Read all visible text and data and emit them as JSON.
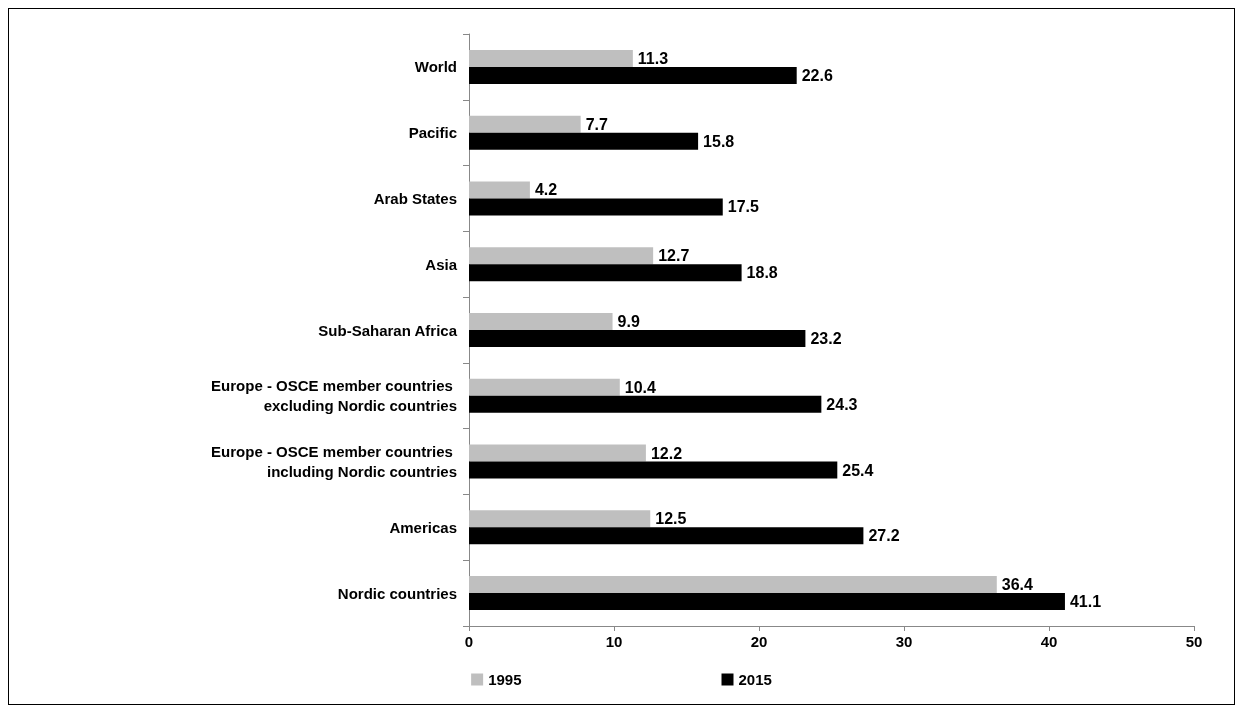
{
  "chart_data": {
    "type": "bar",
    "orientation": "horizontal",
    "categories": [
      "World",
      "Pacific",
      "Arab States",
      "Asia",
      "Sub-Saharan Africa",
      "Europe - OSCE member countries excluding Nordic countries",
      "Europe - OSCE member countries including Nordic countries",
      "Americas",
      "Nordic countries"
    ],
    "series": [
      {
        "name": "1995",
        "color": "#bfbfbf",
        "values": [
          11.3,
          7.7,
          4.2,
          12.7,
          9.9,
          10.4,
          12.2,
          12.5,
          36.4
        ]
      },
      {
        "name": "2015",
        "color": "#000000",
        "values": [
          22.6,
          15.8,
          17.5,
          18.8,
          23.2,
          24.3,
          25.4,
          27.2,
          41.1
        ]
      }
    ],
    "xlim": [
      0,
      50
    ],
    "xticks": [
      0,
      10,
      20,
      30,
      40,
      50
    ],
    "grid": false,
    "legend": "bottom",
    "data_labels": true
  }
}
